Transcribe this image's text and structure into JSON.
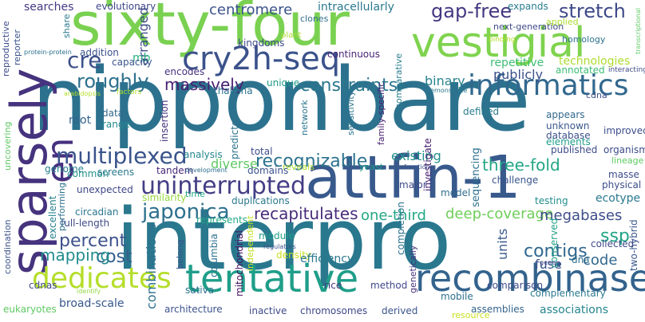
{
  "words": [
    {
      "text": "sixty-four",
      "color": "#7ad151"
    },
    {
      "text": "nipponbare",
      "color": "#2c728e"
    },
    {
      "text": "interpro",
      "color": "#2a788e"
    },
    {
      "text": "attfin-1",
      "color": "#38598c"
    },
    {
      "text": "sparsely",
      "color": "#46337e"
    },
    {
      "text": "vestigial",
      "color": "#7fd34e"
    },
    {
      "text": "cry2h-seq",
      "color": "#3b528b"
    },
    {
      "text": "recombinase",
      "color": "#33638d"
    },
    {
      "text": "tentative",
      "color": "#1f9e89"
    },
    {
      "text": "informatics",
      "color": "#31688e"
    },
    {
      "text": "uninterrupted",
      "color": "#433e85"
    },
    {
      "text": "dedicates",
      "color": "#b5de2b"
    },
    {
      "text": "en",
      "color": "#46307e"
    },
    {
      "text": "japonica",
      "color": "#2d708e"
    },
    {
      "text": "multiplexed",
      "color": "#3a548c"
    },
    {
      "text": "constraints",
      "color": "#2a788e"
    },
    {
      "text": "roughly",
      "color": "#2c718e"
    },
    {
      "text": "cre",
      "color": "#3c508b"
    },
    {
      "text": "gap-free",
      "color": "#453781"
    },
    {
      "text": "stretch",
      "color": "#3e4a89"
    },
    {
      "text": "recognizable",
      "color": "#2c728e"
    },
    {
      "text": "recapitulates",
      "color": "#472c7a"
    },
    {
      "text": "deep-coverage",
      "color": "#6ece58"
    },
    {
      "text": "three-fold",
      "color": "#21a685"
    },
    {
      "text": "one-third",
      "color": "#22a785"
    },
    {
      "text": "percent",
      "color": "#3b518b"
    },
    {
      "text": "cost",
      "color": "#355f8d"
    },
    {
      "text": "mapping",
      "color": "#228c8d"
    },
    {
      "text": "megabases",
      "color": "#3d4e8a"
    },
    {
      "text": "contigs",
      "color": "#31678e"
    },
    {
      "text": "ssp",
      "color": "#20a486"
    },
    {
      "text": "code",
      "color": "#31688e"
    },
    {
      "text": "centromere",
      "color": "#3b528b"
    },
    {
      "text": "massively",
      "color": "#481f70"
    },
    {
      "text": "arranged",
      "color": "#3d4d8a"
    },
    {
      "text": "combinations",
      "color": "#2d708e"
    },
    {
      "text": "existing",
      "color": "#21918c"
    },
    {
      "text": "units",
      "color": "#38588c"
    },
    {
      "text": "fuse",
      "color": "#3b528b"
    },
    {
      "text": "diverse",
      "color": "#5ec962"
    },
    {
      "text": "binary",
      "color": "#26828e"
    },
    {
      "text": "repetitive",
      "color": "#3dbc74"
    },
    {
      "text": "publicly",
      "color": "#3c4f8a"
    },
    {
      "text": "technologies",
      "color": "#addc30"
    },
    {
      "text": "sequencing",
      "color": "#2d708e"
    },
    {
      "text": "searches",
      "color": "#453882"
    },
    {
      "text": "intracellularly",
      "color": "#2a788e"
    },
    {
      "text": "expands",
      "color": "#287c8e"
    },
    {
      "text": "kingdoms",
      "color": "#3e4a89"
    },
    {
      "text": "mb",
      "color": "#29af7f"
    },
    {
      "text": "encodes",
      "color": "#46327e"
    },
    {
      "text": "capacity",
      "color": "#39558c"
    },
    {
      "text": "addition",
      "color": "#3b528b"
    },
    {
      "text": "evolutionary",
      "color": "#3f4788"
    },
    {
      "text": "clones",
      "color": "#2e6f8e"
    },
    {
      "text": "homology",
      "color": "#2c728e"
    },
    {
      "text": "next-generation",
      "color": "#3e4989"
    },
    {
      "text": "applied",
      "color": "#addc30"
    },
    {
      "text": "continuous",
      "color": "#482475"
    },
    {
      "text": "unique",
      "color": "#1f9a8a"
    },
    {
      "text": "thaliana",
      "color": "#2c718e"
    },
    {
      "text": "insertion",
      "color": "#46327e"
    },
    {
      "text": "data",
      "color": "#31688e"
    },
    {
      "text": "range",
      "color": "#23898e"
    },
    {
      "text": "root",
      "color": "#33628d"
    },
    {
      "text": "genome",
      "color": "#27808e"
    },
    {
      "text": "common",
      "color": "#20928c"
    },
    {
      "text": "screens",
      "color": "#2a788e"
    },
    {
      "text": "analysis",
      "color": "#25858e"
    },
    {
      "text": "predicted",
      "color": "#2c728e"
    },
    {
      "text": "total",
      "color": "#3e4c8a"
    },
    {
      "text": "network",
      "color": "#2b758e"
    },
    {
      "text": "sensitivity",
      "color": "#2b748e"
    },
    {
      "text": "family-specific",
      "color": "#482071"
    },
    {
      "text": "comparative",
      "color": "#287d8e"
    },
    {
      "text": "defined",
      "color": "#287c8e"
    },
    {
      "text": "investigate",
      "color": "#482071"
    },
    {
      "text": "appears",
      "color": "#31688e"
    },
    {
      "text": "unknown",
      "color": "#38588c"
    },
    {
      "text": "database",
      "color": "#3c508b"
    },
    {
      "text": "elements",
      "color": "#1f9e89"
    },
    {
      "text": "published",
      "color": "#3e4c8a"
    },
    {
      "text": "organism",
      "color": "#3e4c8a"
    },
    {
      "text": "lineage",
      "color": "#5ec962"
    },
    {
      "text": "improved",
      "color": "#3c4f8a"
    },
    {
      "text": "cdna",
      "color": "#3b528b"
    },
    {
      "text": "annotated",
      "color": "#3dbc74"
    },
    {
      "text": "masse",
      "color": "#3d4e8a"
    },
    {
      "text": "ecotype",
      "color": "#2a788e"
    },
    {
      "text": "physical",
      "color": "#3c4f8a"
    },
    {
      "text": "challenge",
      "color": "#39558c"
    },
    {
      "text": "reveals",
      "color": "#addc30"
    },
    {
      "text": "yeast",
      "color": "#1f9a8a"
    },
    {
      "text": "domains",
      "color": "#3b528b"
    },
    {
      "text": "duplications",
      "color": "#2a788e"
    },
    {
      "text": "similarity",
      "color": "#95d840"
    },
    {
      "text": "time",
      "color": "#20a486"
    },
    {
      "text": "unexpected",
      "color": "#3f4788"
    },
    {
      "text": "tandem",
      "color": "#482878"
    },
    {
      "text": "circadian",
      "color": "#2a778e"
    },
    {
      "text": "full-length",
      "color": "#3e4a89"
    },
    {
      "text": "excellent",
      "color": "#26828e"
    },
    {
      "text": "represents",
      "color": "#22a785"
    },
    {
      "text": "module",
      "color": "#1f9e89"
    },
    {
      "text": "mitochondrial",
      "color": "#471063"
    },
    {
      "text": "independent",
      "color": "#c2df23"
    },
    {
      "text": "density",
      "color": "#c8e020"
    },
    {
      "text": "efficiency",
      "color": "#2a788e"
    },
    {
      "text": "major",
      "color": "#3e4a89"
    },
    {
      "text": "model",
      "color": "#2e6e8e"
    },
    {
      "text": "testing",
      "color": "#228c8d"
    },
    {
      "text": "two-hybrid",
      "color": "#39568c"
    },
    {
      "text": "conserved",
      "color": "#1fa188"
    },
    {
      "text": "genetically",
      "color": "#46327e"
    },
    {
      "text": "completion",
      "color": "#2c728e"
    },
    {
      "text": "dna",
      "color": "#2e6f8e"
    },
    {
      "text": "columbia",
      "color": "#2d708e"
    },
    {
      "text": "rice",
      "color": "#46337e"
    },
    {
      "text": "method",
      "color": "#3f4889"
    },
    {
      "text": "mobile",
      "color": "#2d708e"
    },
    {
      "text": "comparison",
      "color": "#3e4a89"
    },
    {
      "text": "complementary",
      "color": "#2a788e"
    },
    {
      "text": "broad-scale",
      "color": "#38588c"
    },
    {
      "text": "eukaryotes",
      "color": "#5ec962"
    },
    {
      "text": "architecture",
      "color": "#3b528b"
    },
    {
      "text": "inactive",
      "color": "#3e4a89"
    },
    {
      "text": "chromosomes",
      "color": "#3f4889"
    },
    {
      "text": "derived",
      "color": "#39558c"
    },
    {
      "text": "assemblies",
      "color": "#33638d"
    },
    {
      "text": "resource",
      "color": "#c8e020"
    },
    {
      "text": "associations",
      "color": "#25858e"
    },
    {
      "text": "collected",
      "color": "#3e4989"
    },
    {
      "text": "belong",
      "color": "#3b518b"
    },
    {
      "text": "sativa",
      "color": "#2c718e"
    },
    {
      "text": "cdnas",
      "color": "#3e4a89"
    },
    {
      "text": "coordination",
      "color": "#3b528b"
    },
    {
      "text": "performing",
      "color": "#2c728e"
    },
    {
      "text": "uncovering",
      "color": "#5ec962"
    },
    {
      "text": "reproductive",
      "color": "#3e4c8a"
    },
    {
      "text": "reporter",
      "color": "#3b528b"
    },
    {
      "text": "share",
      "color": "#2a788e"
    },
    {
      "text": "plant",
      "color": "#addc30"
    },
    {
      "text": "binding",
      "color": "#b5de2b"
    },
    {
      "text": "interacting",
      "color": "#3e4a89"
    },
    {
      "text": "protein-protein",
      "color": "#2c728e"
    },
    {
      "text": "arabidopsis",
      "color": "#b5de2b"
    },
    {
      "text": "factors",
      "color": "#addc30"
    },
    {
      "text": "demonstrate",
      "color": "#2a788e"
    },
    {
      "text": "development",
      "color": "#2e6f8e"
    },
    {
      "text": "functions",
      "color": "#3b528b"
    },
    {
      "text": "regulators",
      "color": "#3b528b"
    },
    {
      "text": "gene",
      "color": "#3e4a89"
    },
    {
      "text": "identify",
      "color": "#95d840"
    },
    {
      "text": "transcriptional",
      "color": "#5ec962"
    }
  ]
}
